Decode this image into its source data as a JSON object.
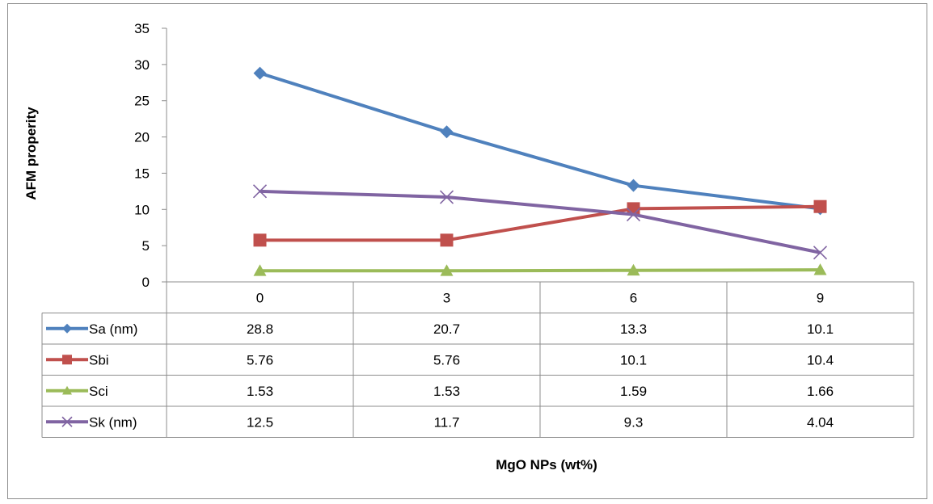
{
  "chart_data": {
    "type": "line",
    "xlabel": "MgO NPs (wt%)",
    "ylabel": "AFM properity",
    "categories": [
      "0",
      "3",
      "6",
      "9"
    ],
    "ylim": [
      0,
      35
    ],
    "yticks": [
      "0",
      "5",
      "10",
      "15",
      "20",
      "25",
      "30",
      "35"
    ],
    "grid": false,
    "legend": "data table below plot",
    "series": [
      {
        "name": "Sa (nm)",
        "values": [
          28.8,
          20.7,
          13.3,
          10.1
        ],
        "labels": [
          "28.8",
          "20.7",
          "13.3",
          "10.1"
        ],
        "color": "#4f81bd",
        "marker": "diamond"
      },
      {
        "name": "Sbi",
        "values": [
          5.76,
          5.76,
          10.1,
          10.4
        ],
        "labels": [
          "5.76",
          "5.76",
          "10.1",
          "10.4"
        ],
        "color": "#c0504d",
        "marker": "square"
      },
      {
        "name": "Sci",
        "values": [
          1.53,
          1.53,
          1.59,
          1.66
        ],
        "labels": [
          "1.53",
          "1.53",
          "1.59",
          "1.66"
        ],
        "color": "#9bbb59",
        "marker": "triangle"
      },
      {
        "name": "Sk (nm)",
        "values": [
          12.5,
          11.7,
          9.3,
          4.04
        ],
        "labels": [
          "12.5",
          "11.7",
          "9.3",
          "4.04"
        ],
        "color": "#8064a2",
        "marker": "x"
      }
    ]
  }
}
